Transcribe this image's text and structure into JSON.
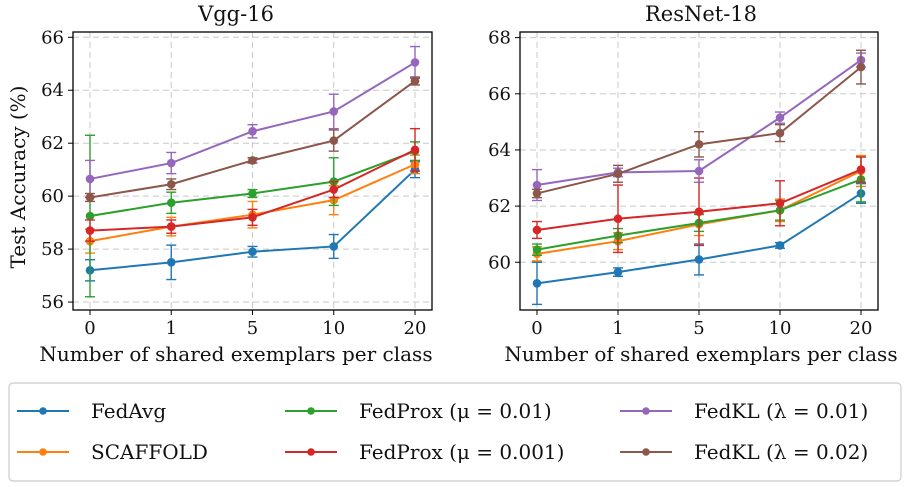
{
  "colors": {
    "FedAvg": "#1f77b4",
    "SCAFFOLD": "#ff7f0e",
    "FedProx_001": "#2ca02c",
    "FedProx_0001": "#d62728",
    "FedKL_001": "#9467bd",
    "FedKL_002": "#8c564b"
  },
  "legend": {
    "placement": "bottom",
    "items": [
      {
        "key": "FedAvg",
        "label": "FedAvg"
      },
      {
        "key": "FedProx_001",
        "label": "FedProx (μ = 0.01)"
      },
      {
        "key": "FedKL_001",
        "label": "FedKL (λ = 0.01)"
      },
      {
        "key": "SCAFFOLD",
        "label": "SCAFFOLD"
      },
      {
        "key": "FedProx_0001",
        "label": "FedProx (μ = 0.001)"
      },
      {
        "key": "FedKL_002",
        "label": "FedKL (λ = 0.02)"
      }
    ]
  },
  "chart_data": [
    {
      "type": "line",
      "title": "Vgg-16",
      "xlabel": "Number of shared exemplars per class",
      "ylabel": "Test Accuracy (%)",
      "categories": [
        "0",
        "1",
        "5",
        "10",
        "20"
      ],
      "ylim": [
        55.7,
        66.2
      ],
      "yticks": [
        56,
        58,
        60,
        62,
        64,
        66
      ],
      "grid": true,
      "series": [
        {
          "key": "FedAvg",
          "name": "FedAvg",
          "values": [
            57.2,
            57.5,
            57.9,
            58.1,
            61.0
          ],
          "err": [
            0.4,
            0.65,
            0.2,
            0.45,
            0.3
          ]
        },
        {
          "key": "SCAFFOLD",
          "name": "SCAFFOLD",
          "values": [
            58.3,
            58.85,
            59.3,
            59.85,
            61.2
          ],
          "err": [
            0.45,
            0.35,
            0.5,
            0.55,
            0.35
          ]
        },
        {
          "key": "FedProx_001",
          "name": "FedProx (μ = 0.01)",
          "values": [
            59.25,
            59.75,
            60.1,
            60.55,
            61.7
          ],
          "err": [
            3.05,
            0.4,
            0.15,
            0.9,
            0.35
          ]
        },
        {
          "key": "FedProx_0001",
          "name": "FedProx (μ = 0.001)",
          "values": [
            58.7,
            58.85,
            59.2,
            60.25,
            61.75
          ],
          "err": [
            0.4,
            0.25,
            0.3,
            0.3,
            0.8
          ]
        },
        {
          "key": "FedKL_001",
          "name": "FedKL (λ = 0.01)",
          "values": [
            60.65,
            61.25,
            62.45,
            63.2,
            65.05
          ],
          "err": [
            0.7,
            0.4,
            0.25,
            0.65,
            0.6
          ]
        },
        {
          "key": "FedKL_002",
          "name": "FedKL (λ = 0.02)",
          "values": [
            59.95,
            60.45,
            61.35,
            62.1,
            64.35
          ],
          "err": [
            0.15,
            0.2,
            0.1,
            0.4,
            0.15
          ]
        }
      ]
    },
    {
      "type": "line",
      "title": "ResNet-18",
      "xlabel": "Number of shared exemplars per class",
      "ylabel": "",
      "categories": [
        "0",
        "1",
        "5",
        "10",
        "20"
      ],
      "ylim": [
        58.3,
        68.2
      ],
      "yticks": [
        60,
        62,
        64,
        66,
        68
      ],
      "grid": true,
      "series": [
        {
          "key": "FedAvg",
          "name": "FedAvg",
          "values": [
            59.25,
            59.65,
            60.1,
            60.6,
            62.45
          ],
          "err": [
            0.75,
            0.15,
            0.55,
            0.1,
            0.35
          ]
        },
        {
          "key": "SCAFFOLD",
          "name": "SCAFFOLD",
          "values": [
            60.3,
            60.75,
            61.35,
            61.85,
            63.25
          ],
          "err": [
            0.25,
            0.3,
            0.4,
            0.4,
            0.55
          ]
        },
        {
          "key": "FedProx_001",
          "name": "FedProx (μ = 0.01)",
          "values": [
            60.45,
            60.95,
            61.4,
            61.85,
            62.95
          ],
          "err": [
            0.2,
            0.25,
            0.3,
            0.35,
            0.8
          ]
        },
        {
          "key": "FedProx_0001",
          "name": "FedProx (μ = 0.001)",
          "values": [
            61.15,
            61.55,
            61.8,
            62.1,
            63.3
          ],
          "err": [
            0.3,
            1.2,
            1.2,
            0.8,
            0.45
          ]
        },
        {
          "key": "FedKL_001",
          "name": "FedKL (λ = 0.01)",
          "values": [
            62.75,
            63.2,
            63.25,
            65.15,
            67.2
          ],
          "err": [
            0.55,
            0.15,
            0.4,
            0.2,
            0.25
          ]
        },
        {
          "key": "FedKL_002",
          "name": "FedKL (λ = 0.02)",
          "values": [
            62.45,
            63.15,
            64.2,
            64.6,
            66.95
          ],
          "err": [
            0.15,
            0.3,
            0.45,
            0.3,
            0.6
          ]
        }
      ]
    }
  ]
}
